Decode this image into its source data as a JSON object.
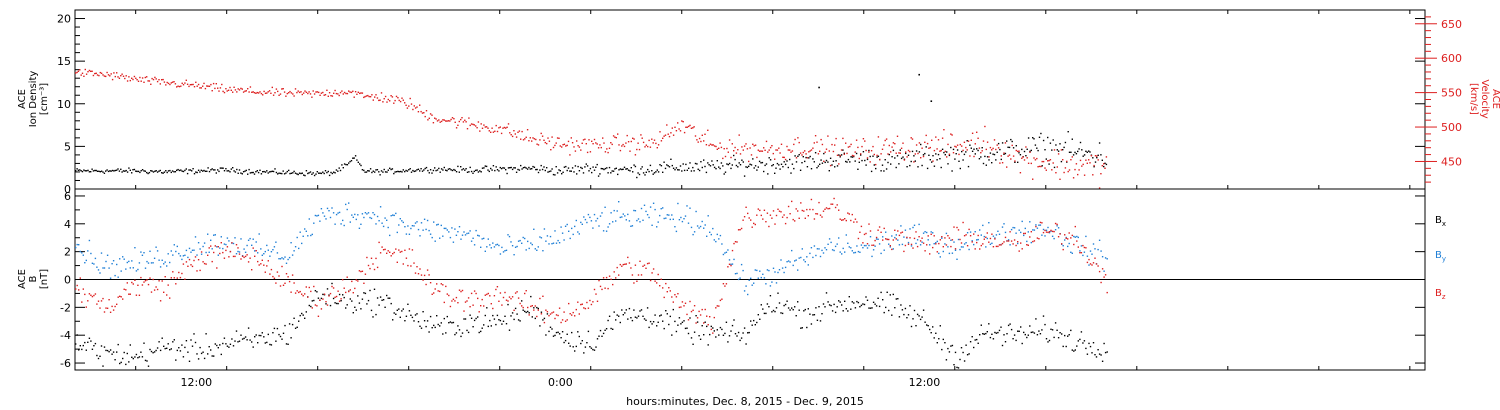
{
  "colors": {
    "density": "#000000",
    "velocity": "#dd1f1f",
    "bx": "#000000",
    "by": "#1f7fd6",
    "bz": "#dd1f1f",
    "axis": "#000000"
  },
  "xaxis_label": "hours:minutes, Dec.  8, 2015 - Dec.  9, 2015",
  "xaxis_ticks": [
    "12:00",
    "0:00",
    "12:00"
  ],
  "top_panel": {
    "left_label_lines": [
      "ACE",
      "Ion Density",
      "[cm⁻³]"
    ],
    "right_label_lines": [
      "ACE",
      "Velocity",
      "[km/s]"
    ],
    "left_ticks": [
      "0",
      "5",
      "10",
      "15",
      "20"
    ],
    "right_ticks": [
      "450",
      "500",
      "550",
      "600",
      "650"
    ]
  },
  "bottom_panel": {
    "left_label_lines": [
      "ACE",
      "B",
      "[nT]"
    ],
    "left_ticks": [
      "-6",
      "-4",
      "-2",
      "0",
      "2",
      "4",
      "6"
    ],
    "legend": [
      {
        "key": "x",
        "base": "B",
        "sub": "x",
        "color": "#000000"
      },
      {
        "key": "y",
        "base": "B",
        "sub": "y",
        "color": "#1f7fd6"
      },
      {
        "key": "z",
        "base": "B",
        "sub": "z",
        "color": "#dd1f1f"
      }
    ]
  },
  "chart_data": [
    {
      "type": "scatter",
      "title": "",
      "xlabel": "hours:minutes, Dec.  8, 2015 - Dec.  9, 2015",
      "ylabel": "ACE Ion Density [cm⁻³]",
      "y2label": "ACE Velocity [km/s]",
      "ylim": [
        0,
        21
      ],
      "y2lim": [
        410,
        670
      ],
      "xlim_hours": [
        8.0,
        52.5
      ],
      "x_unit": "hours since 2015-12-08 00:00",
      "series": [
        {
          "name": "Ion Density",
          "axis": "left",
          "x": [
            8,
            9,
            10,
            11,
            12,
            13,
            14,
            15,
            16,
            16.5,
            17,
            17.2,
            17.5,
            18,
            19,
            20,
            21,
            22,
            23,
            24,
            25,
            26,
            27,
            28,
            29,
            30,
            31,
            32,
            33,
            34,
            35,
            36,
            37,
            38,
            39,
            40,
            41,
            42
          ],
          "y": [
            2.2,
            2.2,
            2.2,
            2.1,
            2.2,
            2.3,
            2.1,
            2.0,
            1.9,
            2.0,
            3.0,
            3.8,
            2.2,
            2.1,
            2.3,
            2.4,
            2.3,
            2.4,
            2.5,
            2.2,
            2.5,
            2.3,
            2.4,
            2.7,
            2.6,
            2.9,
            3.0,
            3.2,
            3.5,
            3.6,
            3.3,
            3.8,
            4.0,
            4.3,
            4.6,
            4.9,
            4.4,
            3.8
          ]
        },
        {
          "name": "Velocity",
          "axis": "right",
          "x": [
            8,
            9,
            10,
            11,
            12,
            13,
            14,
            15,
            16,
            17,
            17.5,
            18,
            19,
            19.5,
            20,
            21,
            22,
            23,
            24,
            25,
            26,
            27,
            28,
            29,
            30,
            31,
            32,
            33,
            34,
            35,
            36,
            37,
            38,
            39,
            40,
            41,
            42
          ],
          "y": [
            580,
            577,
            570,
            565,
            561,
            555,
            552,
            550,
            549,
            553,
            545,
            545,
            535,
            520,
            513,
            505,
            499,
            484,
            476,
            474,
            477,
            476,
            504,
            472,
            470,
            468,
            473,
            467,
            466,
            470,
            473,
            471,
            480,
            458,
            450,
            445,
            442
          ]
        },
        {
          "name": "Ion Density isolated points",
          "axis": "left",
          "x": [
            32.5,
            35.8,
            36.2
          ],
          "y": [
            12.0,
            13.5,
            10.4
          ]
        }
      ]
    },
    {
      "type": "scatter",
      "title": "",
      "xlabel": "hours:minutes, Dec.  8, 2015 - Dec.  9, 2015",
      "ylabel": "ACE B [nT]",
      "ylim": [
        -6.5,
        6.5
      ],
      "xlim_hours": [
        8.0,
        52.5
      ],
      "x_unit": "hours since 2015-12-08 00:00",
      "zero_line": true,
      "series": [
        {
          "name": "Bx",
          "x": [
            8,
            9,
            10,
            11,
            12,
            13,
            14,
            15,
            16,
            17,
            18,
            19,
            20,
            21,
            22,
            23,
            24,
            25,
            26,
            27,
            28,
            29,
            30,
            31,
            32,
            33,
            34,
            35,
            36,
            37,
            38,
            39,
            40,
            41,
            42
          ],
          "y": [
            -4.5,
            -5.3,
            -5.5,
            -4.8,
            -5.0,
            -4.6,
            -4.3,
            -3.8,
            -1.0,
            -1.5,
            -1.5,
            -2.5,
            -3.5,
            -3.0,
            -3.0,
            -2.0,
            -4.0,
            -4.5,
            -2.5,
            -2.5,
            -3.5,
            -3.8,
            -4.0,
            -1.5,
            -2.5,
            -1.8,
            -1.5,
            -2.0,
            -3.0,
            -5.5,
            -3.8,
            -4.0,
            -3.6,
            -4.4,
            -4.8
          ]
        },
        {
          "name": "By",
          "x": [
            8,
            9,
            10,
            11,
            12,
            13,
            14,
            15,
            16,
            17,
            18,
            19,
            20,
            21,
            22,
            23,
            24,
            25,
            26,
            27,
            28,
            29,
            30,
            31,
            32,
            33,
            34,
            35,
            36,
            37,
            38,
            39,
            40,
            41,
            42
          ],
          "y": [
            2.5,
            1.0,
            1.2,
            1.8,
            2.5,
            2.8,
            2.2,
            1.8,
            4.5,
            4.8,
            4.6,
            3.8,
            3.5,
            3.2,
            2.2,
            2.5,
            3.2,
            4.2,
            4.5,
            4.5,
            4.5,
            3.8,
            -0.2,
            0.5,
            1.5,
            2.5,
            2.2,
            3.0,
            3.0,
            2.5,
            3.2,
            3.5,
            3.8,
            2.5,
            1.5
          ]
        },
        {
          "name": "Bz",
          "x": [
            8,
            9,
            10,
            11,
            12,
            13,
            14,
            15,
            16,
            17,
            18,
            19,
            20,
            21,
            22,
            23,
            24,
            25,
            26,
            27,
            28,
            29,
            30,
            31,
            32,
            33,
            34,
            35,
            36,
            37,
            38,
            39,
            40,
            41,
            42
          ],
          "y": [
            -0.5,
            -2.0,
            -0.3,
            -0.5,
            1.5,
            2.0,
            1.5,
            -0.3,
            -1.5,
            -0.5,
            2.0,
            1.5,
            -1.0,
            -1.5,
            -1.0,
            -2.0,
            -2.5,
            -1.5,
            1.0,
            0.5,
            -2.0,
            -3.0,
            4.5,
            4.8,
            5.0,
            5.2,
            3.5,
            3.0,
            2.5,
            3.0,
            3.0,
            2.5,
            3.5,
            3.0,
            0.0
          ]
        }
      ]
    }
  ]
}
